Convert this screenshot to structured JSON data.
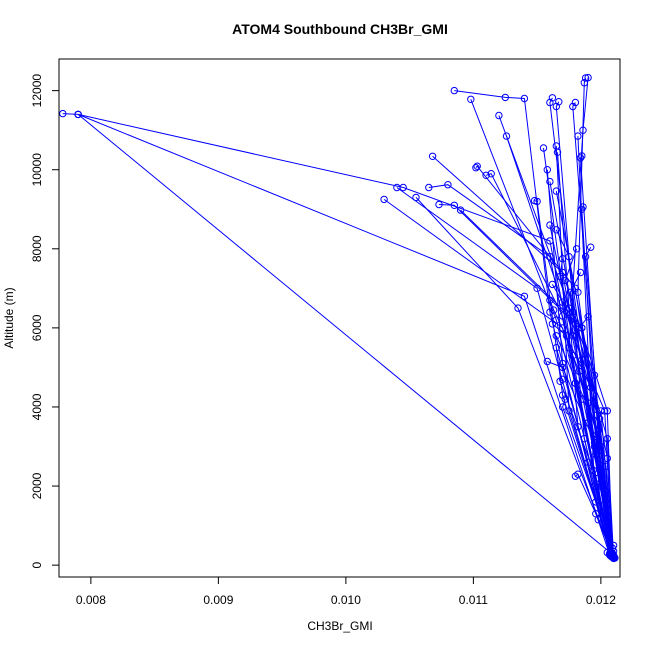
{
  "chart_data": {
    "type": "line",
    "title": "ATOM4 Southbound CH3Br_GMI",
    "xlabel": "CH3Br_GMI",
    "ylabel": "Altitude (m)",
    "xlim": [
      0.00775,
      0.01215
    ],
    "ylim": [
      -300,
      12800
    ],
    "xticks": [
      0.008,
      0.009,
      0.01,
      0.011,
      0.012
    ],
    "xtick_labels": [
      "0.008",
      "0.009",
      "0.010",
      "0.011",
      "0.012"
    ],
    "yticks": [
      0,
      2000,
      4000,
      6000,
      8000,
      10000,
      12000
    ],
    "ytick_labels": [
      "0",
      "2000",
      "4000",
      "6000",
      "8000",
      "10000",
      "12000"
    ],
    "grid": false,
    "color": "#0000ff",
    "series": [
      {
        "x": [
          0.00778,
          0.0079,
          0.0121
        ],
        "y": [
          11420,
          11400,
          250
        ]
      },
      {
        "x": [
          0.0079,
          0.01045,
          0.0116,
          0.01208
        ],
        "y": [
          11400,
          9550,
          8200,
          220
        ]
      },
      {
        "x": [
          0.0079,
          0.0114,
          0.01207
        ],
        "y": [
          11400,
          6800,
          250
        ]
      },
      {
        "x": [
          0.0103,
          0.0117,
          0.01209
        ],
        "y": [
          9250,
          6000,
          200
        ]
      },
      {
        "x": [
          0.0104,
          0.0115,
          0.01207
        ],
        "y": [
          9550,
          7000,
          300
        ]
      },
      {
        "x": [
          0.01055,
          0.01135,
          0.0121
        ],
        "y": [
          9300,
          6500,
          180
        ]
      },
      {
        "x": [
          0.01065,
          0.0108,
          0.0116,
          0.01208
        ],
        "y": [
          9550,
          9620,
          7800,
          240
        ]
      },
      {
        "x": [
          0.01068,
          0.0117,
          0.01209
        ],
        "y": [
          10340,
          7400,
          260
        ]
      },
      {
        "x": [
          0.01073,
          0.01085,
          0.0118,
          0.01208
        ],
        "y": [
          9120,
          9100,
          6100,
          230
        ]
      },
      {
        "x": [
          0.01085,
          0.01125,
          0.0114,
          0.0116,
          0.01207
        ],
        "y": [
          12000,
          11830,
          11800,
          6400,
          260
        ]
      },
      {
        "x": [
          0.01098,
          0.01165,
          0.01209
        ],
        "y": [
          11780,
          6200,
          210
        ]
      },
      {
        "x": [
          0.0109,
          0.01185,
          0.01208
        ],
        "y": [
          8980,
          6000,
          270
        ]
      },
      {
        "x": [
          0.01102,
          0.01103,
          0.0118,
          0.0121
        ],
        "y": [
          10050,
          10090,
          7000,
          200
        ]
      },
      {
        "x": [
          0.0111,
          0.01114,
          0.0117,
          0.01208
        ],
        "y": [
          9860,
          9900,
          6300,
          250
        ]
      },
      {
        "x": [
          0.0112,
          0.01195,
          0.01209
        ],
        "y": [
          11370,
          4800,
          230
        ]
      },
      {
        "x": [
          0.01126,
          0.01185,
          0.0121
        ],
        "y": [
          10850,
          5200,
          190
        ]
      },
      {
        "x": [
          0.01148,
          0.0115,
          0.0117,
          0.01209
        ],
        "y": [
          9220,
          9200,
          4300,
          240
        ]
      },
      {
        "x": [
          0.01155,
          0.0118,
          0.01208
        ],
        "y": [
          10550,
          4600,
          300
        ]
      },
      {
        "x": [
          0.01158,
          0.0117,
          0.01207
        ],
        "y": [
          10000,
          5100,
          280
        ]
      },
      {
        "x": [
          0.0116,
          0.0119,
          0.0121
        ],
        "y": [
          9700,
          4100,
          200
        ]
      },
      {
        "x": [
          0.01162,
          0.0116,
          0.0119,
          0.0121
        ],
        "y": [
          11820,
          11700,
          3600,
          220
        ]
      },
      {
        "x": [
          0.01165,
          0.01175,
          0.01209
        ],
        "y": [
          10600,
          3900,
          250
        ]
      },
      {
        "x": [
          0.01166,
          0.01182,
          0.01208
        ],
        "y": [
          10440,
          3500,
          260
        ]
      },
      {
        "x": [
          0.01167,
          0.01165,
          0.01187,
          0.01209
        ],
        "y": [
          11720,
          11600,
          3200,
          210
        ]
      },
      {
        "x": [
          0.0116,
          0.01195,
          0.0121
        ],
        "y": [
          8600,
          3000,
          230
        ]
      },
      {
        "x": [
          0.01165,
          0.01205,
          0.01209
        ],
        "y": [
          9460,
          2700,
          240
        ]
      },
      {
        "x": [
          0.0118,
          0.01178,
          0.012,
          0.0121
        ],
        "y": [
          11700,
          11600,
          2400,
          200
        ]
      },
      {
        "x": [
          0.01182,
          0.01195,
          0.01209
        ],
        "y": [
          10850,
          2000,
          220
        ]
      },
      {
        "x": [
          0.01185,
          0.01184,
          0.01202,
          0.0121
        ],
        "y": [
          10350,
          10300,
          1500,
          180
        ]
      },
      {
        "x": [
          0.01188,
          0.01187,
          0.01182,
          0.0121
        ],
        "y": [
          12320,
          12200,
          6900,
          230
        ]
      },
      {
        "x": [
          0.0119,
          0.01186,
          0.01175,
          0.01209
        ],
        "y": [
          12330,
          11000,
          5500,
          250
        ]
      },
      {
        "x": [
          0.01186,
          0.01185,
          0.012,
          0.0121
        ],
        "y": [
          9060,
          9000,
          1200,
          200
        ]
      },
      {
        "x": [
          0.01192,
          0.01188,
          0.01203,
          0.01208
        ],
        "y": [
          8040,
          7800,
          1800,
          300
        ]
      },
      {
        "x": [
          0.01181,
          0.01172,
          0.01205,
          0.01209
        ],
        "y": [
          8000,
          7200,
          3900,
          230
        ]
      },
      {
        "x": [
          0.01184,
          0.01176,
          0.01198,
          0.0121
        ],
        "y": [
          7400,
          6900,
          2200,
          200
        ]
      },
      {
        "x": [
          0.0119,
          0.01178,
          0.01203,
          0.01209
        ],
        "y": [
          6280,
          5800,
          3900,
          250
        ]
      },
      {
        "x": [
          0.01165,
          0.01175,
          0.01196,
          0.01209
        ],
        "y": [
          8480,
          7800,
          2800,
          230
        ]
      },
      {
        "x": [
          0.0117,
          0.01168,
          0.01197,
          0.01209
        ],
        "y": [
          7750,
          7300,
          3800,
          260
        ]
      },
      {
        "x": [
          0.01158,
          0.0117,
          0.01195,
          0.0121
        ],
        "y": [
          5150,
          5000,
          3100,
          200
        ]
      },
      {
        "x": [
          0.01165,
          0.0119,
          0.0121
        ],
        "y": [
          5500,
          2600,
          220
        ]
      },
      {
        "x": [
          0.01172,
          0.0117,
          0.01196,
          0.01209
        ],
        "y": [
          4200,
          4000,
          1600,
          250
        ]
      },
      {
        "x": [
          0.0117,
          0.01168,
          0.01194,
          0.01209
        ],
        "y": [
          4700,
          4650,
          2400,
          230
        ]
      },
      {
        "x": [
          0.01162,
          0.01173,
          0.01197,
          0.0121
        ],
        "y": [
          6100,
          5800,
          3300,
          200
        ]
      },
      {
        "x": [
          0.01165,
          0.01198,
          0.0121
        ],
        "y": [
          5800,
          3400,
          220
        ]
      },
      {
        "x": [
          0.0118,
          0.01182,
          0.01196,
          0.01209
        ],
        "y": [
          2250,
          2300,
          1300,
          250
        ]
      },
      {
        "x": [
          0.0118,
          0.01186,
          0.012,
          0.01208
        ],
        "y": [
          4600,
          4200,
          2000,
          300
        ]
      },
      {
        "x": [
          0.01178,
          0.01183,
          0.012,
          0.01209
        ],
        "y": [
          5300,
          4900,
          3000,
          240
        ]
      },
      {
        "x": [
          0.012,
          0.01209
        ],
        "y": [
          3900,
          230
        ]
      },
      {
        "x": [
          0.01198,
          0.0121
        ],
        "y": [
          1150,
          200
        ]
      },
      {
        "x": [
          0.01205,
          0.01209
        ],
        "y": [
          320,
          300
        ]
      },
      {
        "x": [
          0.0121,
          0.01209,
          0.0121,
          0.01208
        ],
        "y": [
          500,
          430,
          350,
          250
        ]
      },
      {
        "x": [
          0.0121,
          0.01211
        ],
        "y": [
          170,
          180
        ]
      },
      {
        "x": [
          0.01162,
          0.0118,
          0.01205,
          0.0121
        ],
        "y": [
          7100,
          6100,
          3200,
          200
        ]
      },
      {
        "x": [
          0.0116,
          0.01163,
          0.01192,
          0.01209
        ],
        "y": [
          6700,
          6450,
          4500,
          230
        ]
      },
      {
        "x": [
          0.0117,
          0.01178,
          0.01199,
          0.01209
        ],
        "y": [
          6650,
          6400,
          3700,
          250
        ]
      },
      {
        "x": [
          0.01175,
          0.01185,
          0.01204,
          0.0121
        ],
        "y": [
          6500,
          6000,
          2500,
          220
        ]
      }
    ]
  }
}
